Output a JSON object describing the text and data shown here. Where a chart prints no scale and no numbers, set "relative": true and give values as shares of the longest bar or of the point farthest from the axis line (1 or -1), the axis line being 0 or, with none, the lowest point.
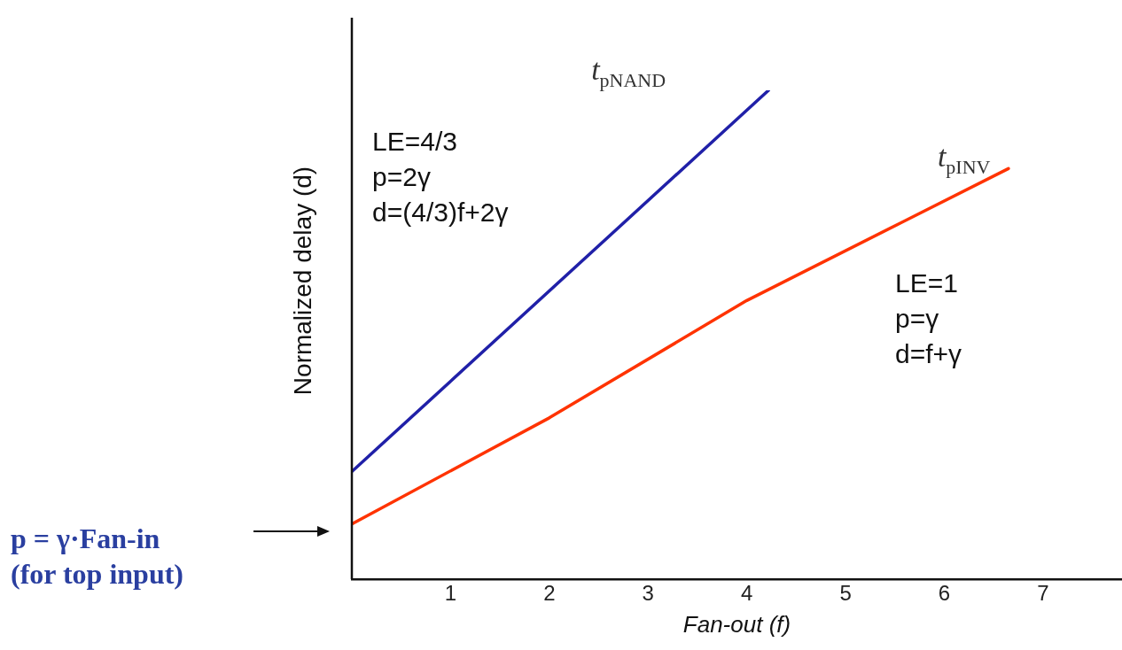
{
  "chart_data": {
    "type": "line",
    "relative": true,
    "xlabel": "Fan-out (f)",
    "ylabel": "Normalized delay (d)",
    "xlim": [
      0,
      7.8
    ],
    "xticks": [
      1,
      2,
      3,
      4,
      5,
      6,
      7
    ],
    "grid": false,
    "legend": false,
    "marker": "none",
    "line_style": "solid",
    "series": [
      {
        "name": "t$_{pNAND}$",
        "color": "#2020a8",
        "x": [
          0,
          4.22
        ],
        "values": [
          0.22,
          1
        ]
      },
      {
        "name": "t$_{pINV}$",
        "color": "#ff3300",
        "x": [
          0,
          2,
          4,
          6.65
        ],
        "values": [
          0.113,
          0.33,
          0.57,
          0.84
        ]
      }
    ],
    "annotations": [
      "LE=4/3\np=2γ\nd=(4/3)f+2γ",
      "LE=1\np=γ\nd=f+γ",
      "p = γ·Fan-in\n(for top input)"
    ]
  }
}
